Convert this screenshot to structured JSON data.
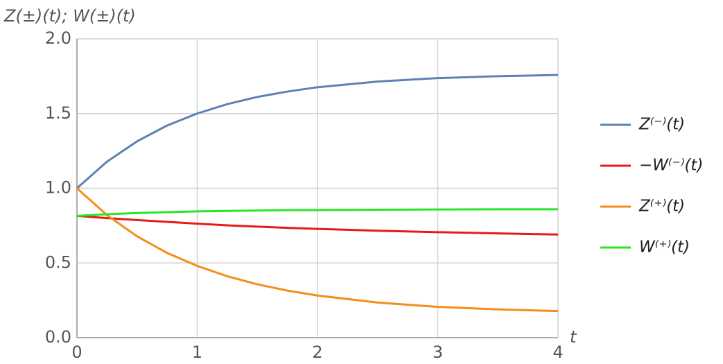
{
  "chart_data": {
    "type": "line",
    "y_label": "Z(±)(t); W(±)(t)",
    "x_label": "t",
    "x": [
      0,
      0.25,
      0.5,
      0.75,
      1,
      1.25,
      1.5,
      1.75,
      2,
      2.5,
      3,
      3.5,
      4
    ],
    "series": [
      {
        "name": "Z⁽⁻⁾(t)",
        "color": "#5e81b5",
        "values": [
          1.0,
          1.178,
          1.314,
          1.42,
          1.5,
          1.563,
          1.611,
          1.647,
          1.676,
          1.714,
          1.737,
          1.75,
          1.758
        ]
      },
      {
        "name": "−W⁽⁻⁾(t)",
        "color": "#e8191b",
        "values": [
          0.815,
          0.8,
          0.787,
          0.775,
          0.763,
          0.752,
          0.743,
          0.735,
          0.728,
          0.716,
          0.706,
          0.698,
          0.69
        ]
      },
      {
        "name": "Z⁽⁺⁾(t)",
        "color": "#f28e1c",
        "values": [
          1.0,
          0.82,
          0.678,
          0.567,
          0.48,
          0.411,
          0.357,
          0.315,
          0.282,
          0.235,
          0.206,
          0.189,
          0.178
        ]
      },
      {
        "name": "W⁽⁺⁾(t)",
        "color": "#26e626",
        "values": [
          0.815,
          0.826,
          0.834,
          0.84,
          0.845,
          0.848,
          0.851,
          0.853,
          0.854,
          0.856,
          0.858,
          0.859,
          0.859
        ]
      }
    ],
    "xlim": [
      0,
      4
    ],
    "ylim": [
      0,
      2
    ],
    "xticks": [
      0,
      1,
      2,
      3,
      4
    ],
    "yticks": [
      {
        "value": 0,
        "label": "0.0"
      },
      {
        "value": 0.5,
        "label": "0.5"
      },
      {
        "value": 1,
        "label": "1.0"
      },
      {
        "value": 1.5,
        "label": "1.5"
      },
      {
        "value": 2,
        "label": "2.0"
      }
    ],
    "grid": true,
    "legend": "right"
  }
}
